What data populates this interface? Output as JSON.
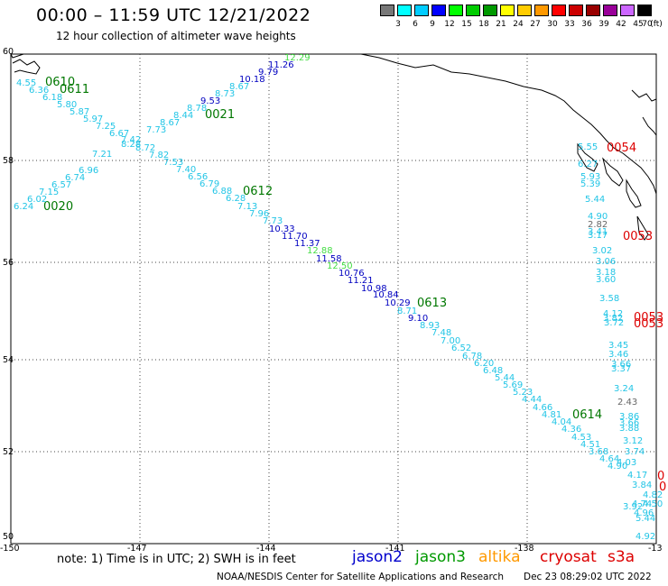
{
  "header": {
    "title": "00:00 – 11:59 UTC 12/21/2022",
    "subtitle": "12 hour collection of altimeter wave heights"
  },
  "color_scale": {
    "unit": "(ft)",
    "entries": [
      {
        "label": "3",
        "color": "#777777"
      },
      {
        "label": "6",
        "color": "#00ffff"
      },
      {
        "label": "9",
        "color": "#00ccff"
      },
      {
        "label": "12",
        "color": "#0000ff"
      },
      {
        "label": "15",
        "color": "#00ff00"
      },
      {
        "label": "18",
        "color": "#00cc00"
      },
      {
        "label": "21",
        "color": "#009900"
      },
      {
        "label": "24",
        "color": "#ffff00"
      },
      {
        "label": "27",
        "color": "#ffcc00"
      },
      {
        "label": "30",
        "color": "#ff9900"
      },
      {
        "label": "33",
        "color": "#ff0000"
      },
      {
        "label": "36",
        "color": "#cc0000"
      },
      {
        "label": "39",
        "color": "#990000"
      },
      {
        "label": "42",
        "color": "#990099"
      },
      {
        "label": "45",
        "color": "#cc66ff"
      },
      {
        "label": "70",
        "color": "#000000"
      }
    ]
  },
  "axes": {
    "lat_ticks": [
      "60",
      "58",
      "56",
      "54",
      "52",
      "50"
    ],
    "lon_ticks": [
      "-150",
      "-147",
      "-144",
      "-141",
      "-138",
      "-13"
    ]
  },
  "colors": {
    "gray": "#666666",
    "cyan": "#22c5e6",
    "blue": "#0000c0",
    "green": "#44dd44",
    "darkgreen": "#007700",
    "red": "#dd0000"
  },
  "time_labels": [
    {
      "text": "0610",
      "color": "darkgreen"
    },
    {
      "text": "0611",
      "color": "darkgreen"
    },
    {
      "text": "0021",
      "color": "darkgreen"
    },
    {
      "text": "0612",
      "color": "darkgreen"
    },
    {
      "text": "0020",
      "color": "darkgreen"
    },
    {
      "text": "0613",
      "color": "darkgreen"
    },
    {
      "text": "0614",
      "color": "darkgreen"
    },
    {
      "text": "0054",
      "color": "red"
    },
    {
      "text": "0053",
      "color": "red"
    },
    {
      "text": "0053",
      "color": "red"
    },
    {
      "text": "0053",
      "color": "red"
    },
    {
      "text": "0",
      "color": "red"
    },
    {
      "text": "0",
      "color": "red"
    }
  ],
  "wave_heights": [
    {
      "text": "4.55",
      "color": "cyan"
    },
    {
      "text": "6.36",
      "color": "cyan"
    },
    {
      "text": "6.18",
      "color": "cyan"
    },
    {
      "text": "5.80",
      "color": "cyan"
    },
    {
      "text": "5.87",
      "color": "cyan"
    },
    {
      "text": "5.97",
      "color": "cyan"
    },
    {
      "text": "7.25",
      "color": "cyan"
    },
    {
      "text": "6.67",
      "color": "cyan"
    },
    {
      "text": "7.42",
      "color": "cyan"
    },
    {
      "text": "8.28",
      "color": "cyan"
    },
    {
      "text": "8.72",
      "color": "cyan"
    },
    {
      "text": "7.82",
      "color": "cyan"
    },
    {
      "text": "7.53",
      "color": "cyan"
    },
    {
      "text": "7.40",
      "color": "cyan"
    },
    {
      "text": "6.56",
      "color": "cyan"
    },
    {
      "text": "6.79",
      "color": "cyan"
    },
    {
      "text": "6.88",
      "color": "cyan"
    },
    {
      "text": "6.28",
      "color": "cyan"
    },
    {
      "text": "7.13",
      "color": "cyan"
    },
    {
      "text": "7.96",
      "color": "cyan"
    },
    {
      "text": "7.73",
      "color": "cyan"
    },
    {
      "text": "10.33",
      "color": "blue"
    },
    {
      "text": "11.70",
      "color": "blue"
    },
    {
      "text": "11.37",
      "color": "blue"
    },
    {
      "text": "12.88",
      "color": "green"
    },
    {
      "text": "11.58",
      "color": "blue"
    },
    {
      "text": "12.50",
      "color": "green"
    },
    {
      "text": "10.76",
      "color": "blue"
    },
    {
      "text": "11.21",
      "color": "blue"
    },
    {
      "text": "10.98",
      "color": "blue"
    },
    {
      "text": "10.84",
      "color": "blue"
    },
    {
      "text": "10.29",
      "color": "blue"
    },
    {
      "text": "8.71",
      "color": "cyan"
    },
    {
      "text": "9.10",
      "color": "blue"
    },
    {
      "text": "8.93",
      "color": "cyan"
    },
    {
      "text": "7.48",
      "color": "cyan"
    },
    {
      "text": "7.00",
      "color": "cyan"
    },
    {
      "text": "6.52",
      "color": "cyan"
    },
    {
      "text": "6.78",
      "color": "cyan"
    },
    {
      "text": "6.20",
      "color": "cyan"
    },
    {
      "text": "6.48",
      "color": "cyan"
    },
    {
      "text": "5.44",
      "color": "cyan"
    },
    {
      "text": "5.69",
      "color": "cyan"
    },
    {
      "text": "5.23",
      "color": "cyan"
    },
    {
      "text": "4.44",
      "color": "cyan"
    },
    {
      "text": "4.66",
      "color": "cyan"
    },
    {
      "text": "4.81",
      "color": "cyan"
    },
    {
      "text": "4.04",
      "color": "cyan"
    },
    {
      "text": "4.36",
      "color": "cyan"
    },
    {
      "text": "4.53",
      "color": "cyan"
    },
    {
      "text": "4.51",
      "color": "cyan"
    },
    {
      "text": "3.68",
      "color": "cyan"
    },
    {
      "text": "4.64",
      "color": "cyan"
    },
    {
      "text": "4.90",
      "color": "cyan"
    },
    {
      "text": "4.03",
      "color": "cyan"
    },
    {
      "text": "3.74",
      "color": "cyan"
    },
    {
      "text": "3.12",
      "color": "cyan"
    },
    {
      "text": "4.17",
      "color": "cyan"
    },
    {
      "text": "3.84",
      "color": "cyan"
    },
    {
      "text": "4.82",
      "color": "cyan"
    },
    {
      "text": "4.74",
      "color": "cyan"
    },
    {
      "text": "4.50",
      "color": "cyan"
    },
    {
      "text": "4.96",
      "color": "cyan"
    },
    {
      "text": "5.44",
      "color": "cyan"
    },
    {
      "text": "4.92",
      "color": "cyan"
    },
    {
      "text": "7.21",
      "color": "cyan"
    },
    {
      "text": "6.96",
      "color": "cyan"
    },
    {
      "text": "6.74",
      "color": "cyan"
    },
    {
      "text": "6.57",
      "color": "cyan"
    },
    {
      "text": "7.15",
      "color": "cyan"
    },
    {
      "text": "6.02",
      "color": "cyan"
    },
    {
      "text": "6.24",
      "color": "cyan"
    },
    {
      "text": "7.73",
      "color": "cyan"
    },
    {
      "text": "8.67",
      "color": "cyan"
    },
    {
      "text": "8.44",
      "color": "cyan"
    },
    {
      "text": "8.78",
      "color": "cyan"
    },
    {
      "text": "9.53",
      "color": "blue"
    },
    {
      "text": "8.73",
      "color": "cyan"
    },
    {
      "text": "8.67",
      "color": "cyan"
    },
    {
      "text": "10.18",
      "color": "blue"
    },
    {
      "text": "9.79",
      "color": "blue"
    },
    {
      "text": "11.26",
      "color": "blue"
    },
    {
      "text": "12.29",
      "color": "green"
    },
    {
      "text": "5.55",
      "color": "cyan"
    },
    {
      "text": "6.27",
      "color": "cyan"
    },
    {
      "text": "5.93",
      "color": "cyan"
    },
    {
      "text": "5.39",
      "color": "cyan"
    },
    {
      "text": "5.44",
      "color": "cyan"
    },
    {
      "text": "4.90",
      "color": "cyan"
    },
    {
      "text": "2.82",
      "color": "gray"
    },
    {
      "text": "3.41",
      "color": "cyan"
    },
    {
      "text": "3.17",
      "color": "cyan"
    },
    {
      "text": "3.02",
      "color": "cyan"
    },
    {
      "text": "3.06",
      "color": "cyan"
    },
    {
      "text": "3.18",
      "color": "cyan"
    },
    {
      "text": "3.60",
      "color": "cyan"
    },
    {
      "text": "3.58",
      "color": "cyan"
    },
    {
      "text": "4.12",
      "color": "cyan"
    },
    {
      "text": "3.82",
      "color": "cyan"
    },
    {
      "text": "3.72",
      "color": "cyan"
    },
    {
      "text": "3.45",
      "color": "cyan"
    },
    {
      "text": "3.46",
      "color": "cyan"
    },
    {
      "text": "3.66",
      "color": "cyan"
    },
    {
      "text": "3.37",
      "color": "cyan"
    },
    {
      "text": "3.24",
      "color": "cyan"
    },
    {
      "text": "2.43",
      "color": "gray"
    },
    {
      "text": "3.86",
      "color": "cyan"
    },
    {
      "text": "3.66",
      "color": "cyan"
    },
    {
      "text": "3.88",
      "color": "cyan"
    },
    {
      "text": "3.92",
      "color": "cyan"
    }
  ],
  "footer": {
    "note": "note:  1) Time is in UTC;  2) SWH is in feet",
    "satellites": [
      {
        "label": "jason2",
        "color": "#0000cc"
      },
      {
        "label": "jason3",
        "color": "#009900"
      },
      {
        "label": "altika",
        "color": "#ff9900"
      },
      {
        "label": "cryosat",
        "color": "#dd0000"
      },
      {
        "label": "s3a",
        "color": "#dd0000"
      }
    ],
    "credit": "NOAA/NESDIS Center for Satellite Applications and Research",
    "timestamp": "Dec 23 08:29:02 UTC 2022"
  }
}
